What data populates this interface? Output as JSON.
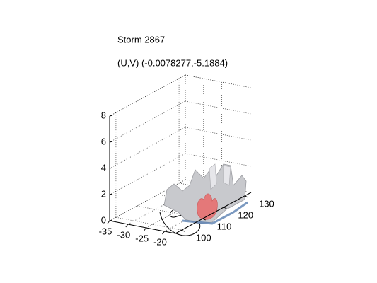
{
  "chart_data": {
    "type": "surface3d",
    "title": "Storm 2867",
    "subtitle": "(U,V) (-0.0078277,-5.1884)",
    "xlim": [
      -35,
      -17
    ],
    "xticks": [
      -35,
      -30,
      -25,
      -20
    ],
    "ylim": [
      97,
      133
    ],
    "yticks": [
      100,
      110,
      120,
      130
    ],
    "zlim": [
      0,
      8
    ],
    "zticks": [
      0,
      2,
      4,
      6,
      8
    ],
    "grid": true
  }
}
